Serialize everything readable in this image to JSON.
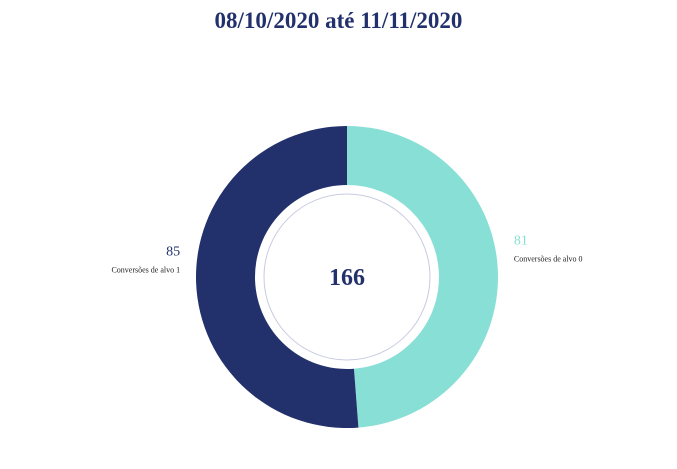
{
  "header": {
    "title": "08/10/2020 até 11/11/2020"
  },
  "chart_data": {
    "type": "pie",
    "title": "08/10/2020 até 11/11/2020",
    "total": "166",
    "categories": [
      "Conversões de alvo 0",
      "Conversões de alvo 1"
    ],
    "values": [
      81,
      85
    ],
    "colors": [
      "#88dfd5",
      "#22316b"
    ],
    "center_color": "#22316b",
    "legend": "none"
  }
}
